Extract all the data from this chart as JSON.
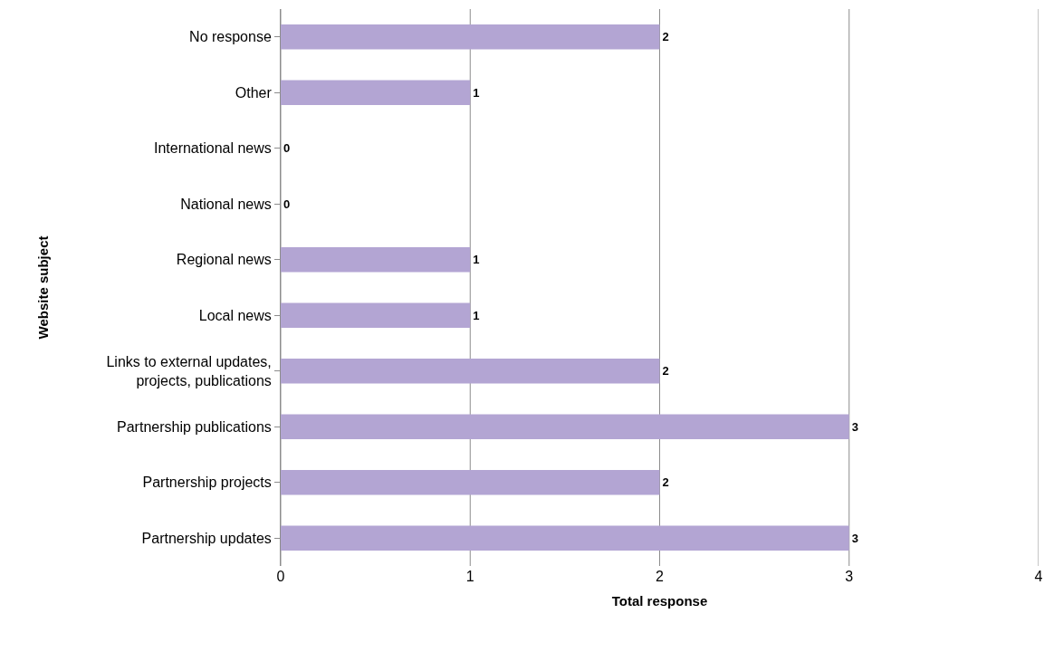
{
  "chart_data": {
    "type": "bar",
    "orientation": "horizontal",
    "xlabel": "Total response",
    "ylabel": "Website subject",
    "categories": [
      "No response",
      "Other",
      "International news",
      "National news",
      "Regional news",
      "Local news",
      "Links to external updates,\nprojects, publications",
      "Partnership publications",
      "Partnership projects",
      "Partnership updates"
    ],
    "values": [
      2,
      1,
      0,
      0,
      1,
      1,
      2,
      3,
      2,
      3
    ],
    "color": "#b3a5d3",
    "xlim": [
      0,
      4
    ],
    "xticks": [
      0,
      1,
      2,
      3,
      4
    ],
    "grid": "x",
    "data_labels": true
  }
}
